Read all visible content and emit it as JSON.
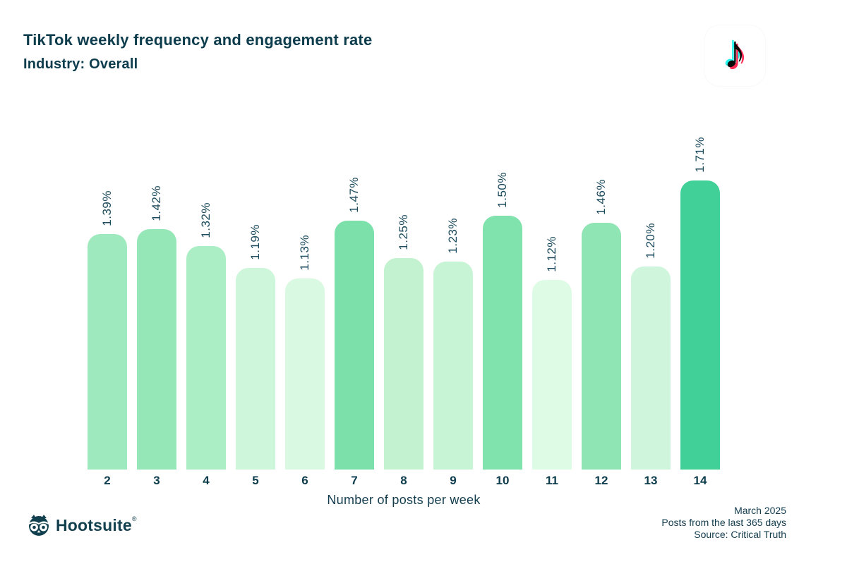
{
  "header": {
    "title": "TikTok weekly frequency and engagement rate",
    "subtitle": "Industry: Overall"
  },
  "chart_data": {
    "type": "bar",
    "categories": [
      "2",
      "3",
      "4",
      "5",
      "6",
      "7",
      "8",
      "9",
      "10",
      "11",
      "12",
      "13",
      "14"
    ],
    "values": [
      1.39,
      1.42,
      1.32,
      1.19,
      1.13,
      1.47,
      1.25,
      1.23,
      1.5,
      1.12,
      1.46,
      1.2,
      1.71
    ],
    "value_labels": [
      "1.39%",
      "1.42%",
      "1.32%",
      "1.19%",
      "1.13%",
      "1.47%",
      "1.25%",
      "1.23%",
      "1.50%",
      "1.12%",
      "1.46%",
      "1.20%",
      "1.71%"
    ],
    "bar_colors": [
      "#9fe9bf",
      "#95e7b8",
      "#abeec5",
      "#cdf6da",
      "#d9f9e2",
      "#7ce0ab",
      "#c2f2d0",
      "#c6f4d4",
      "#80e2ad",
      "#defbe6",
      "#8fe5b4",
      "#cff6dc",
      "#41d097"
    ],
    "title": "TikTok weekly frequency and engagement rate",
    "subtitle": "Industry: Overall",
    "xlabel": "Number of posts per week",
    "ylabel": "",
    "ylim": [
      0,
      1.8
    ],
    "grid": false,
    "legend": "none",
    "value_label_rotation": -90
  },
  "logos": {
    "tiktok_note_glyph": "♪",
    "hootsuite_wordmark": "Hootsuite",
    "hootsuite_reg": "®"
  },
  "footer": {
    "source_lines": [
      "March 2025",
      "Posts from the last 365 days",
      "Source: Critical Truth"
    ]
  },
  "colors": {
    "text_dark_teal": "#0d3c4c",
    "value_label": "#1a4a5c",
    "tiktok_cyan": "#25f4ee",
    "tiktok_red": "#fe2c55",
    "tiktok_black": "#0a0a0a",
    "bar_max": "#41d097",
    "bar_min": "#defbe6"
  }
}
